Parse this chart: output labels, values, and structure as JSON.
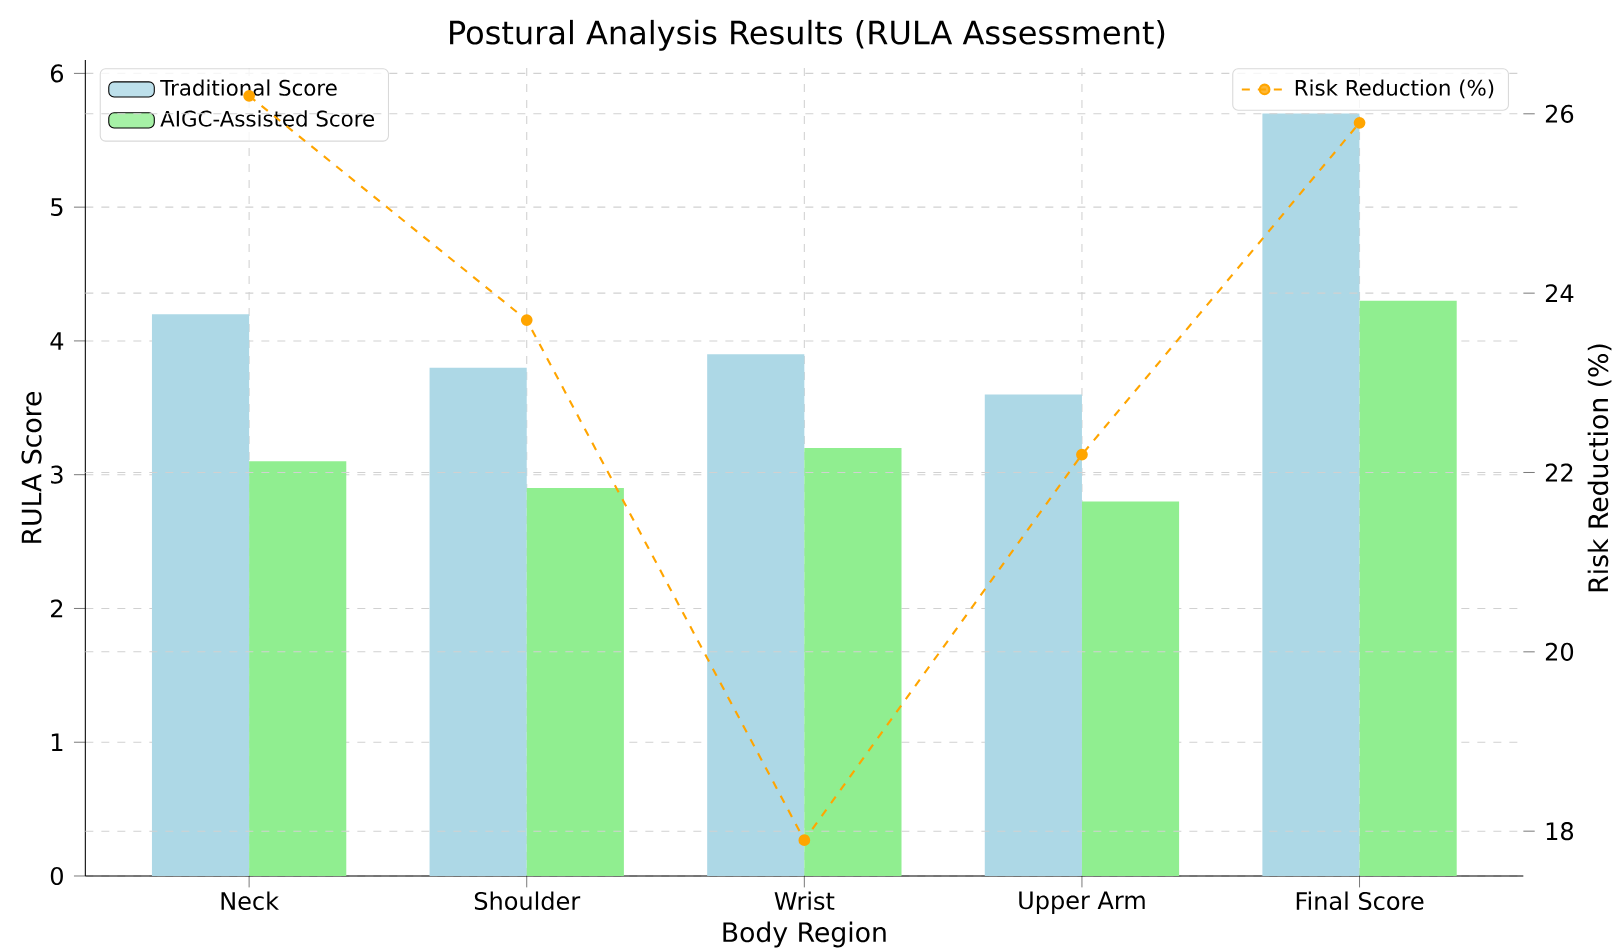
{
  "chart_data": {
    "type": "bar",
    "title": "Postural Analysis Results (RULA Assessment)",
    "xlabel": "Body Region",
    "ylabel": "RULA Score",
    "y2label": "Risk Reduction (%)",
    "categories": [
      "Neck",
      "Shoulder",
      "Wrist",
      "Upper Arm",
      "Final Score"
    ],
    "series": [
      {
        "name": "Traditional Score",
        "color": "#add8e6",
        "values": [
          4.2,
          3.8,
          3.9,
          3.6,
          5.7
        ]
      },
      {
        "name": "AIGC-Assisted Score",
        "color": "#90ee90",
        "values": [
          3.1,
          2.9,
          3.2,
          2.8,
          4.3
        ]
      },
      {
        "name": "Risk Reduction (%)",
        "type": "line",
        "axis": "y2",
        "color": "#ffa500",
        "marker": "circle",
        "line_style": "dashed",
        "values": [
          26.2,
          23.7,
          17.9,
          22.2,
          25.9
        ]
      }
    ],
    "ylim": [
      0,
      6.1
    ],
    "yticks": [
      0,
      1,
      2,
      3,
      4,
      5,
      6
    ],
    "y2lim": [
      17.5,
      26.6
    ],
    "y2ticks": [
      18,
      20,
      22,
      24,
      26
    ],
    "grid": true,
    "legend": "top left"
  }
}
